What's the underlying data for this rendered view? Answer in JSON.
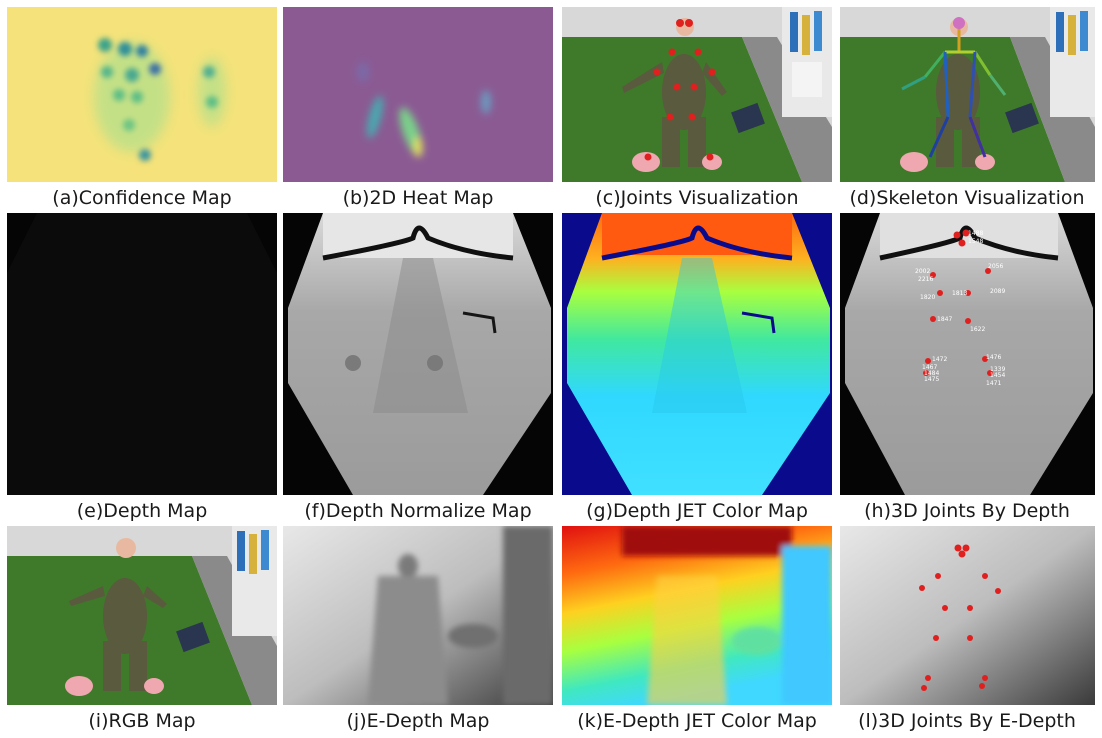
{
  "panels": [
    {
      "id": "a",
      "caption": "(a)Confidence Map"
    },
    {
      "id": "b",
      "caption": "(b)2D Heat Map"
    },
    {
      "id": "c",
      "caption": "(c)Joints Visualization"
    },
    {
      "id": "d",
      "caption": "(d)Skeleton Visualization"
    },
    {
      "id": "e",
      "caption": "(e)Depth Map"
    },
    {
      "id": "f",
      "caption": "(f)Depth Normalize Map"
    },
    {
      "id": "g",
      "caption": "(g)Depth JET Color Map"
    },
    {
      "id": "h",
      "caption": "(h)3D Joints By Depth"
    },
    {
      "id": "i",
      "caption": "(i)RGB Map"
    },
    {
      "id": "j",
      "caption": "(j)E-Depth Map"
    },
    {
      "id": "k",
      "caption": "(k)E-Depth JET Color Map"
    },
    {
      "id": "l",
      "caption": "(l)3D Joints By E-Depth"
    }
  ],
  "depth_labels": [
    "1488",
    "1548",
    "2002",
    "2216",
    "2056",
    "1820",
    "1813",
    "2089",
    "1847",
    "1622",
    "1472",
    "1467",
    "1484",
    "1475",
    "1476",
    "1339",
    "1454",
    "1471"
  ],
  "colors": {
    "confidence_bg": "#f5e27a",
    "heat_bg": "#8b5a93",
    "grass": "#3f7a2a",
    "floor": "#8a8a8a",
    "depth_black": "#050505"
  }
}
